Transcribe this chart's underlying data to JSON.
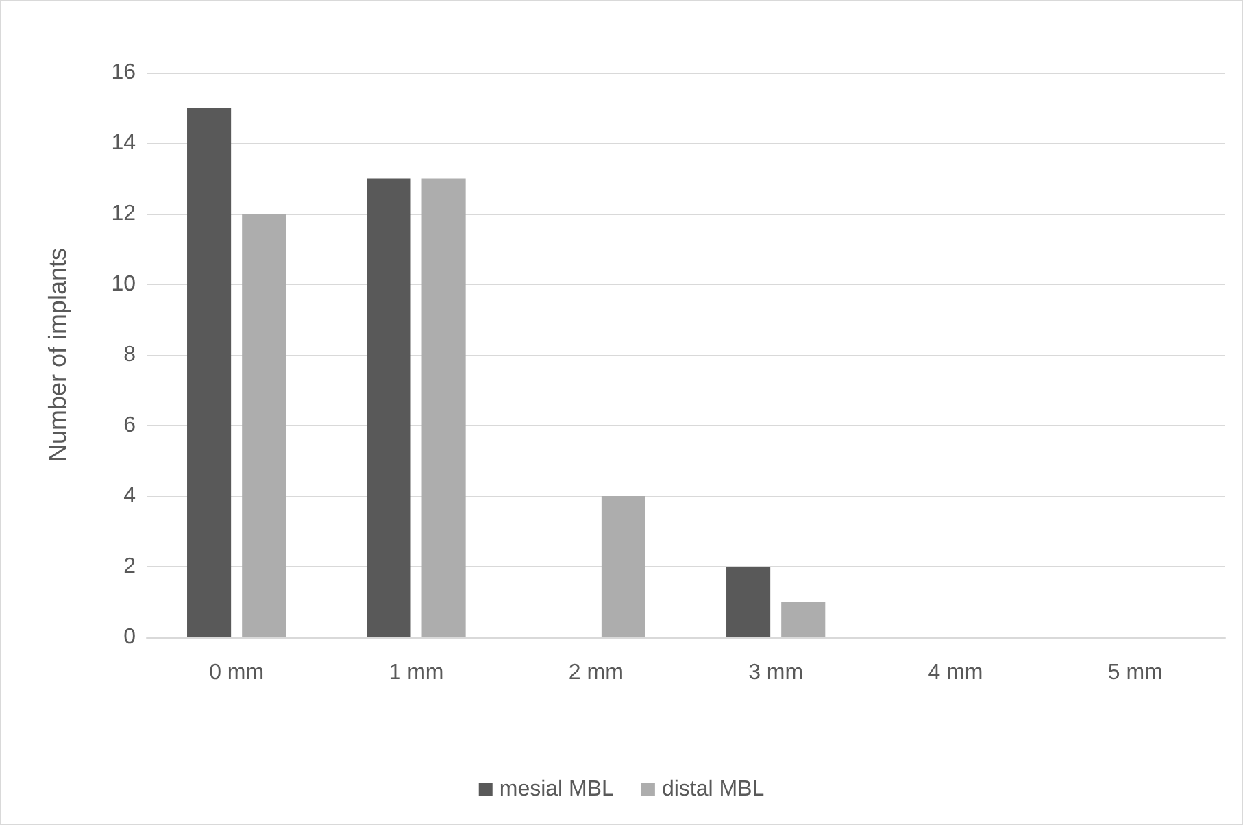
{
  "chart_data": {
    "type": "bar",
    "ylabel": "Number of implants",
    "categories": [
      "0 mm",
      "1 mm",
      "2 mm",
      "3 mm",
      "4 mm",
      "5 mm"
    ],
    "series": [
      {
        "name": "mesial MBL",
        "color": "#595959",
        "values": [
          15,
          13,
          0,
          2,
          0,
          0
        ]
      },
      {
        "name": "distal MBL",
        "color": "#adadad",
        "values": [
          12,
          13,
          4,
          1,
          0,
          0
        ]
      }
    ],
    "ylim": [
      0,
      16
    ],
    "yticks": [
      0,
      2,
      4,
      6,
      8,
      10,
      12,
      14,
      16
    ],
    "grid": "y",
    "legend": "bottom"
  }
}
